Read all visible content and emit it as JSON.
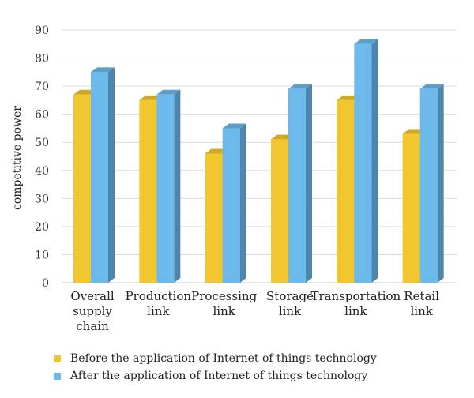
{
  "chart_data": {
    "type": "bar",
    "ylabel": "competitive power",
    "ylim": [
      0,
      90
    ],
    "yticks": [
      0,
      10,
      20,
      30,
      40,
      50,
      60,
      70,
      80,
      90
    ],
    "grid": true,
    "categories": [
      [
        "Overall",
        "supply",
        "chain"
      ],
      [
        "Production",
        "link"
      ],
      [
        "Processing",
        "link"
      ],
      [
        "Storage",
        "link"
      ],
      [
        "Transportation",
        "link"
      ],
      [
        "Retail",
        "link"
      ]
    ],
    "series": [
      {
        "name": "Before the application of Internet of things technology",
        "color": "#F2C62E",
        "values": [
          67,
          65,
          46,
          51,
          65,
          53
        ]
      },
      {
        "name": "After the application of Internet of things technology",
        "color": "#6CB9EC",
        "values": [
          75,
          67,
          55,
          69,
          85,
          69
        ]
      }
    ],
    "legend_position": "bottom"
  }
}
